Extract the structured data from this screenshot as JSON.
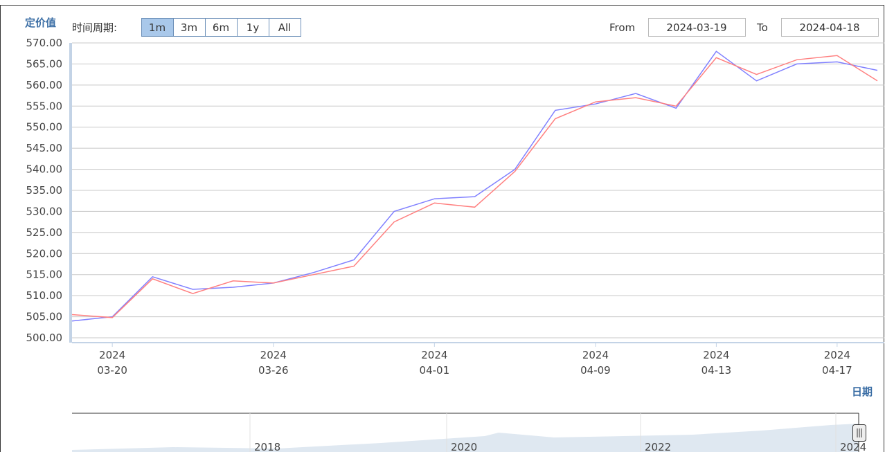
{
  "chart_data": {
    "type": "line",
    "y_axis_title": "定价值",
    "x_axis_title": "日期",
    "range_selector": {
      "label": "时间周期:",
      "buttons": [
        "1m",
        "3m",
        "6m",
        "1y",
        "All"
      ],
      "selected": 0
    },
    "from_label": "From",
    "from_value": "2024-03-19",
    "to_label": "To",
    "to_value": "2024-04-18",
    "categories": [
      null,
      "03-20",
      null,
      null,
      null,
      "03-26",
      null,
      null,
      null,
      "04-01",
      null,
      null,
      null,
      "04-09",
      null,
      null,
      "04-13",
      null,
      null,
      "04-17",
      null
    ],
    "category_years": [
      null,
      "2024",
      null,
      null,
      null,
      "2024",
      null,
      null,
      null,
      "2024",
      null,
      null,
      null,
      "2024",
      null,
      null,
      "2024",
      null,
      null,
      "2024",
      null
    ],
    "series": [
      {
        "color": "#8080ff",
        "values": [
          504,
          505,
          514.5,
          511.5,
          512,
          513,
          515.5,
          518.5,
          530,
          533,
          533.5,
          540,
          554,
          555.5,
          558,
          554.5,
          568,
          561,
          565,
          565.5,
          563.5
        ]
      },
      {
        "color": "#ff8080",
        "values": [
          505.5,
          504.8,
          514,
          510.5,
          513.5,
          513,
          515,
          517,
          527.5,
          532,
          531,
          539.5,
          552,
          556,
          557,
          555,
          566.5,
          562.5,
          566,
          567,
          561
        ]
      }
    ],
    "ylim": [
      500,
      570
    ],
    "yticks": [
      {
        "value": 500,
        "label": "500.00"
      },
      {
        "value": 505,
        "label": "505.00"
      },
      {
        "value": 510,
        "label": "510.00"
      },
      {
        "value": 515,
        "label": "515.00"
      },
      {
        "value": 520,
        "label": "520.00"
      },
      {
        "value": 525,
        "label": "525.00"
      },
      {
        "value": 530,
        "label": "530.00"
      },
      {
        "value": 535,
        "label": "535.00"
      },
      {
        "value": 540,
        "label": "540.00"
      },
      {
        "value": 545,
        "label": "545.00"
      },
      {
        "value": 550,
        "label": "550.00"
      },
      {
        "value": 555,
        "label": "555.00"
      },
      {
        "value": 560,
        "label": "560.00"
      },
      {
        "value": 565,
        "label": "565.00"
      },
      {
        "value": 570,
        "label": "570.00"
      }
    ],
    "grid": true,
    "navigator_labels": [
      "2018",
      "2020",
      "2022",
      "2024"
    ]
  }
}
